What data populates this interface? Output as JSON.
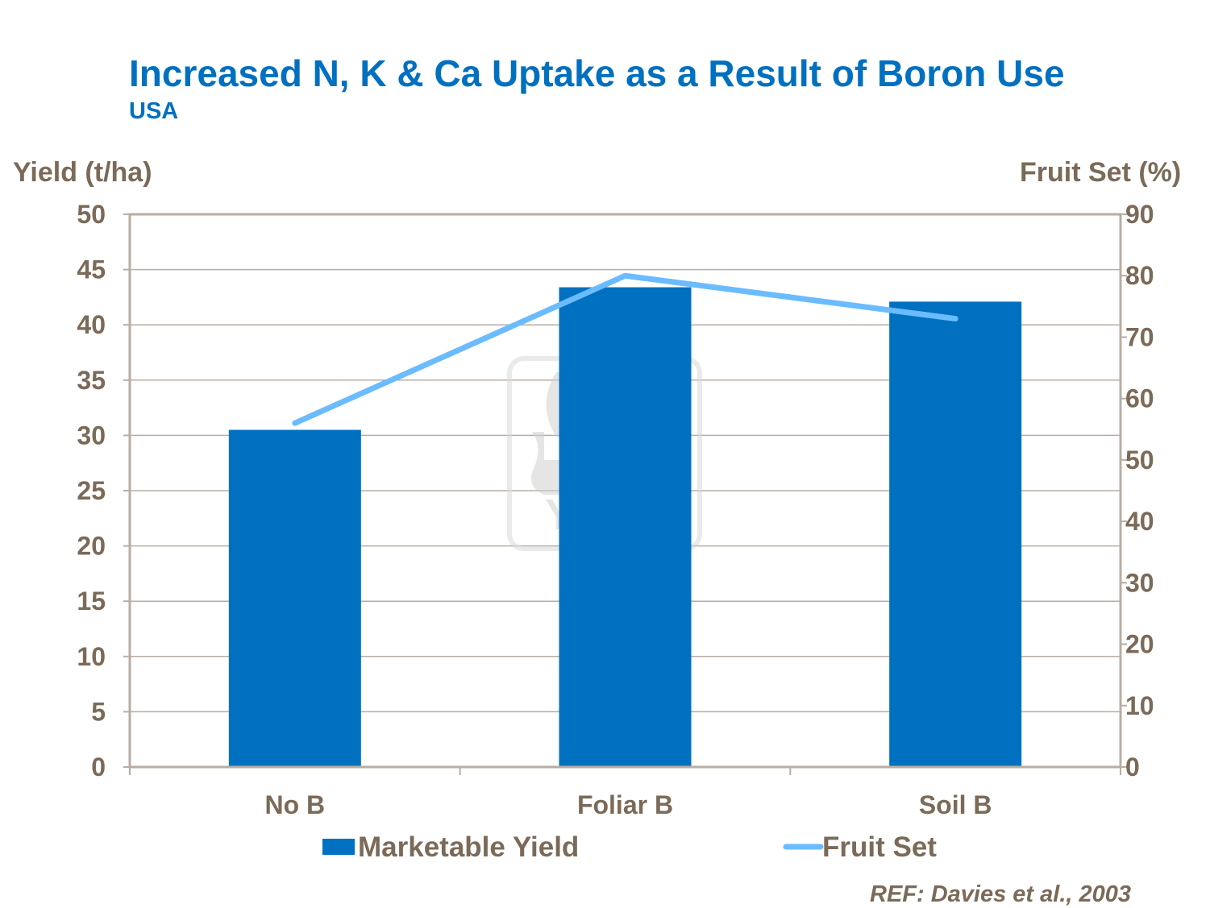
{
  "chart_data": {
    "type": "bar",
    "title": "Increased N, K & Ca Uptake as a Result of Boron Use",
    "subtitle": "USA",
    "ylabel": "Yield (t/ha)",
    "y2label": "Fruit Set (%)",
    "categories": [
      "No B",
      "Foliar B",
      "Soil B"
    ],
    "ylim": [
      0,
      50
    ],
    "y2lim": [
      0,
      90
    ],
    "yticks": [
      0,
      5,
      10,
      15,
      20,
      25,
      30,
      35,
      40,
      45,
      50
    ],
    "y2ticks": [
      0,
      10,
      20,
      30,
      40,
      50,
      60,
      70,
      80,
      90
    ],
    "grid": true,
    "legend": "bottom",
    "series": [
      {
        "name": "Marketable Yield",
        "type": "bar",
        "axis": "left",
        "values": [
          30.5,
          43.4,
          42.1
        ],
        "color": "#0070C0"
      },
      {
        "name": "Fruit Set",
        "type": "line",
        "axis": "right",
        "values": [
          56,
          80,
          73
        ],
        "color": "#6BBBFF"
      }
    ],
    "source": "REF: Davies et al., 2003"
  },
  "watermark": {
    "text": "YARA"
  }
}
